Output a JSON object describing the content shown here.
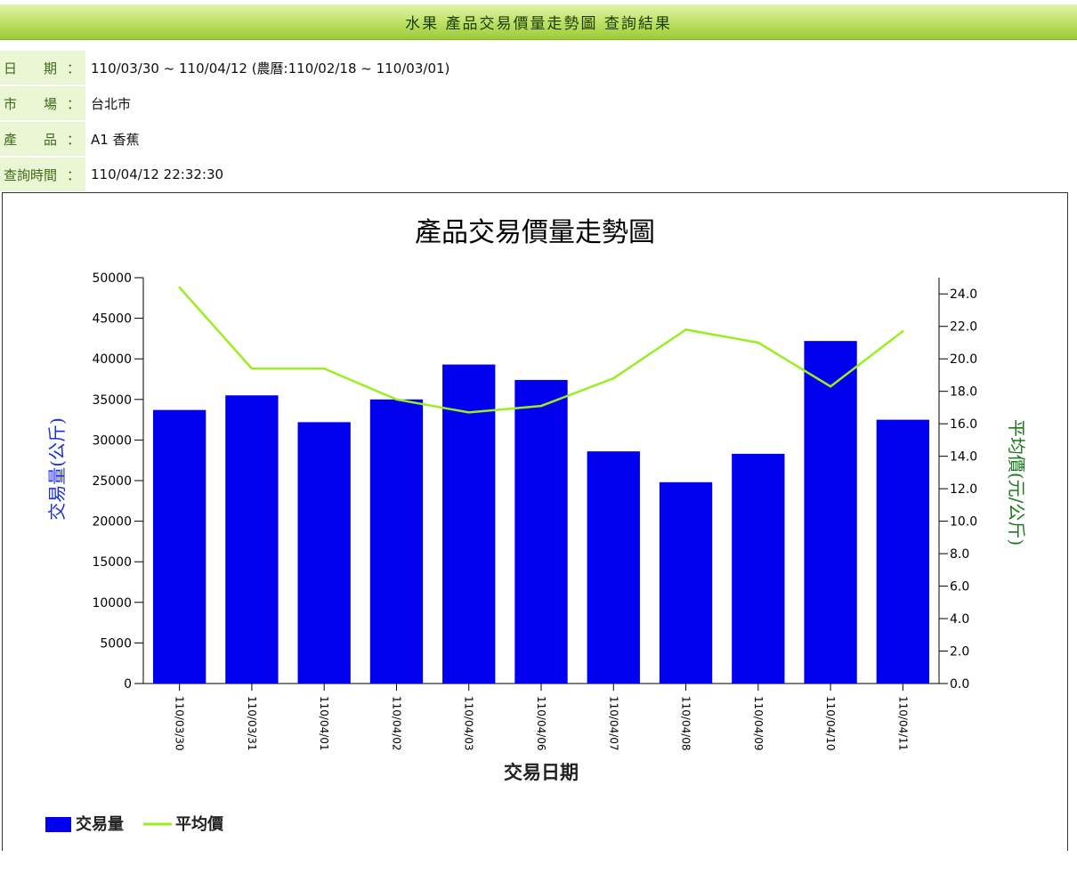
{
  "header": {
    "title": "水果 產品交易價量走勢圖 查詢結果"
  },
  "info": {
    "date_label": "日　　期",
    "date_value": "110/03/30 ~ 110/04/12 (農曆:110/02/18 ~ 110/03/01)",
    "market_label": "市　　場",
    "market_value": "台北市",
    "product_label": "產　　品",
    "product_value": "A1 香蕉",
    "query_time_label": "查詢時間",
    "query_time_value": "110/04/12 22:32:30",
    "colon": "："
  },
  "chart_data": {
    "type": "bar",
    "title": "產品交易價量走勢圖",
    "xlabel": "交易日期",
    "ylabel": "交易量(公斤)",
    "y2label": "平均價(元/公斤)",
    "categories": [
      "110/03/30",
      "110/03/31",
      "110/04/01",
      "110/04/02",
      "110/04/03",
      "110/04/06",
      "110/04/07",
      "110/04/08",
      "110/04/09",
      "110/04/10",
      "110/04/11"
    ],
    "series": [
      {
        "name": "交易量",
        "type": "bar",
        "axis": "left",
        "color": "#0000ee",
        "values": [
          33700,
          35500,
          32200,
          35000,
          39300,
          37400,
          28600,
          24800,
          28300,
          42200,
          32500
        ]
      },
      {
        "name": "平均價",
        "type": "line",
        "axis": "right",
        "color": "#99ee22",
        "values": [
          24.4,
          19.4,
          19.4,
          17.5,
          16.7,
          17.1,
          18.8,
          21.8,
          21.0,
          18.3,
          21.7
        ]
      }
    ],
    "ylim": [
      0,
      50000
    ],
    "y_ticks": [
      "0",
      "5000",
      "10000",
      "15000",
      "20000",
      "25000",
      "30000",
      "35000",
      "40000",
      "45000",
      "50000"
    ],
    "y2lim": [
      0,
      25
    ],
    "y2_ticks": [
      "0.0",
      "2.0",
      "4.0",
      "6.0",
      "8.0",
      "10.0",
      "12.0",
      "14.0",
      "16.0",
      "18.0",
      "20.0",
      "22.0",
      "24.0"
    ],
    "legend_position": "bottom-left",
    "grid": false,
    "colors": {
      "bar": "#0000ee",
      "line": "#99ee22",
      "ylabel": "#1a2ce0",
      "y2label": "#1a7a1a"
    }
  }
}
